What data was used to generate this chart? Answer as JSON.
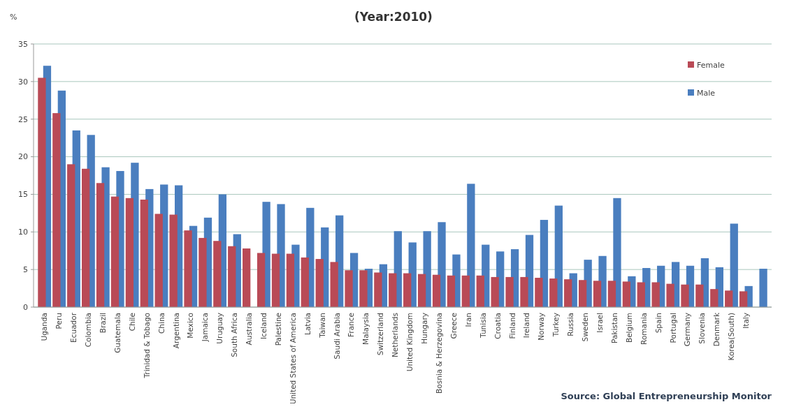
{
  "chart_data": {
    "type": "bar",
    "title": "(Year:2010)",
    "ylabel": "%",
    "categories": [
      "Uganda",
      "Peru",
      "Ecuador",
      "Colombia",
      "Brazil",
      "Guatemala",
      "Chile",
      "Trinidad & Tobago",
      "China",
      "Argentina",
      "Mexico",
      "Jamaica",
      "Uruguay",
      "South Africa",
      "Australia",
      "Iceland",
      "Palestine",
      "United States of America",
      "Latvia",
      "Taiwan",
      "Saudi Arabia",
      "France",
      "Malaysia",
      "Switzerland",
      "Netherlands",
      "United Kingdom",
      "Hungary",
      "Bosnia & Herzegovina",
      "Greece",
      "Iran",
      "Tunisia",
      "Croatia",
      "Finland",
      "Ireland",
      "Norway",
      "Turkey",
      "Russia",
      "Sweden",
      "Israel",
      "Pakistan",
      "Belgium",
      "Romania",
      "Spain",
      "Portugal",
      "Germany",
      "Slovenia",
      "Denmark",
      "Korea(South)",
      "Italy",
      null
    ],
    "series": [
      {
        "name": "Female",
        "color": "#b94a56",
        "values": [
          30.5,
          25.8,
          19.0,
          18.4,
          16.5,
          14.7,
          14.5,
          14.3,
          12.4,
          12.3,
          10.2,
          9.2,
          8.8,
          8.1,
          7.8,
          7.2,
          7.1,
          7.1,
          6.6,
          6.4,
          6.0,
          4.9,
          4.9,
          4.6,
          4.5,
          4.5,
          4.4,
          4.3,
          4.2,
          4.2,
          4.2,
          4.0,
          4.0,
          4.0,
          3.9,
          3.8,
          3.7,
          3.6,
          3.5,
          3.5,
          3.4,
          3.3,
          3.3,
          3.1,
          3.0,
          3.0,
          2.4,
          2.2,
          2.1,
          null
        ]
      },
      {
        "name": "Male",
        "color": "#4a7ebf",
        "values": [
          32.1,
          28.8,
          23.5,
          22.9,
          18.6,
          18.1,
          19.2,
          15.7,
          16.3,
          16.2,
          10.8,
          11.9,
          15.0,
          9.7,
          null,
          14.0,
          13.7,
          8.3,
          13.2,
          10.6,
          12.2,
          7.2,
          5.1,
          5.7,
          10.1,
          8.6,
          10.1,
          11.3,
          7.0,
          16.4,
          8.3,
          7.4,
          7.7,
          9.6,
          11.6,
          13.5,
          4.5,
          6.3,
          6.8,
          14.5,
          4.1,
          5.2,
          5.5,
          6.0,
          5.5,
          6.5,
          5.3,
          11.1,
          2.8,
          5.1
        ]
      }
    ],
    "ylim": [
      0,
      35
    ],
    "yticks": [
      0,
      5,
      10,
      15,
      20,
      25,
      30,
      35
    ],
    "grid": "y",
    "legend": "top right",
    "annotations": [
      "Source:  Global Entrepreneurship Monitor"
    ]
  }
}
